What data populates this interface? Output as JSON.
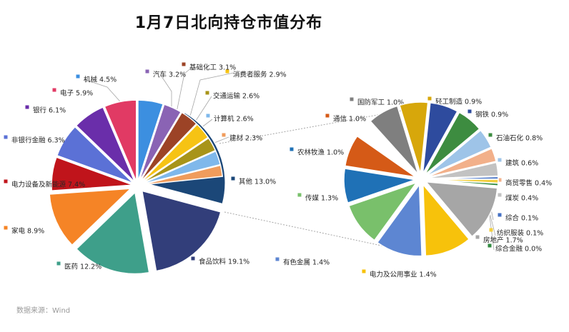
{
  "title": "1月7日北向持仓市值分布",
  "source": "数据来源：Wind",
  "chart_data": [
    {
      "type": "pie",
      "categories": [
        "其他",
        "食品饮料",
        "医药",
        "家电",
        "电力设备及新能源",
        "非银行金融",
        "银行",
        "电子",
        "机械",
        "汽车",
        "基础化工",
        "消费者服务",
        "交通运输",
        "计算机",
        "建材"
      ],
      "values": [
        13.0,
        19.1,
        12.2,
        8.9,
        7.4,
        6.3,
        6.1,
        5.9,
        4.5,
        3.2,
        3.1,
        2.9,
        2.6,
        2.6,
        2.3
      ],
      "labels": [
        "其他 13.0%",
        "食品饮料 19.1%",
        "医药 12.2%",
        "家电 8.9%",
        "电力设备及新能源 7.4%",
        "非银行金融 6.3%",
        "银行 6.1%",
        "电子 5.9%",
        "机械 4.5%",
        "汽车 3.2%",
        "基础化工 3.1%",
        "消费者服务 2.9%",
        "交通运输 2.6%",
        "计算机 2.6%",
        "建材 2.3%"
      ],
      "colors": [
        "#1b4778",
        "#323e7a",
        "#3e9f8a",
        "#f58426",
        "#c0141b",
        "#5b71d6",
        "#6a2eaa",
        "#e13a64",
        "#3c8fe0",
        "#8a63b4",
        "#9c4326",
        "#f6c314",
        "#a89419",
        "#7fb8eb",
        "#f09c5c"
      ]
    },
    {
      "type": "pie",
      "categories": [
        "国防军工",
        "轻工制造",
        "钢铁",
        "石油石化",
        "建筑",
        "商贸零售",
        "煤炭",
        "综合",
        "纺织服装",
        "综合金融",
        "房地产",
        "电力及公用事业",
        "有色金属",
        "传媒",
        "农林牧渔",
        "通信"
      ],
      "values": [
        1.0,
        0.9,
        0.9,
        0.8,
        0.6,
        0.4,
        0.4,
        0.1,
        0.1,
        0.0,
        1.7,
        1.4,
        1.4,
        1.3,
        1.0,
        1.0
      ],
      "labels": [
        "国防军工 1.0%",
        "轻工制造 0.9%",
        "钢铁 0.9%",
        "石油石化 0.8%",
        "建筑 0.6%",
        "商贸零售 0.4%",
        "煤炭 0.4%",
        "综合 0.1%",
        "纺织服装 0.1%",
        "综合金融 0.0%",
        "房地产 1.7%",
        "电力及公用事业 1.4%",
        "有色金属 1.4%",
        "传媒 1.3%",
        "农林牧渔 1.0%",
        "通信 1.0%"
      ],
      "colors": [
        "#7f7f7f",
        "#d7a70b",
        "#2e4b9e",
        "#3d8c40",
        "#9ec4e8",
        "#f2b08a",
        "#c2c2c2",
        "#4470c4",
        "#f4d03f",
        "#2f8a3f",
        "#a6a6a6",
        "#f7c20b",
        "#5d86d2",
        "#79c06b",
        "#1f71b6",
        "#d55a17"
      ]
    }
  ]
}
